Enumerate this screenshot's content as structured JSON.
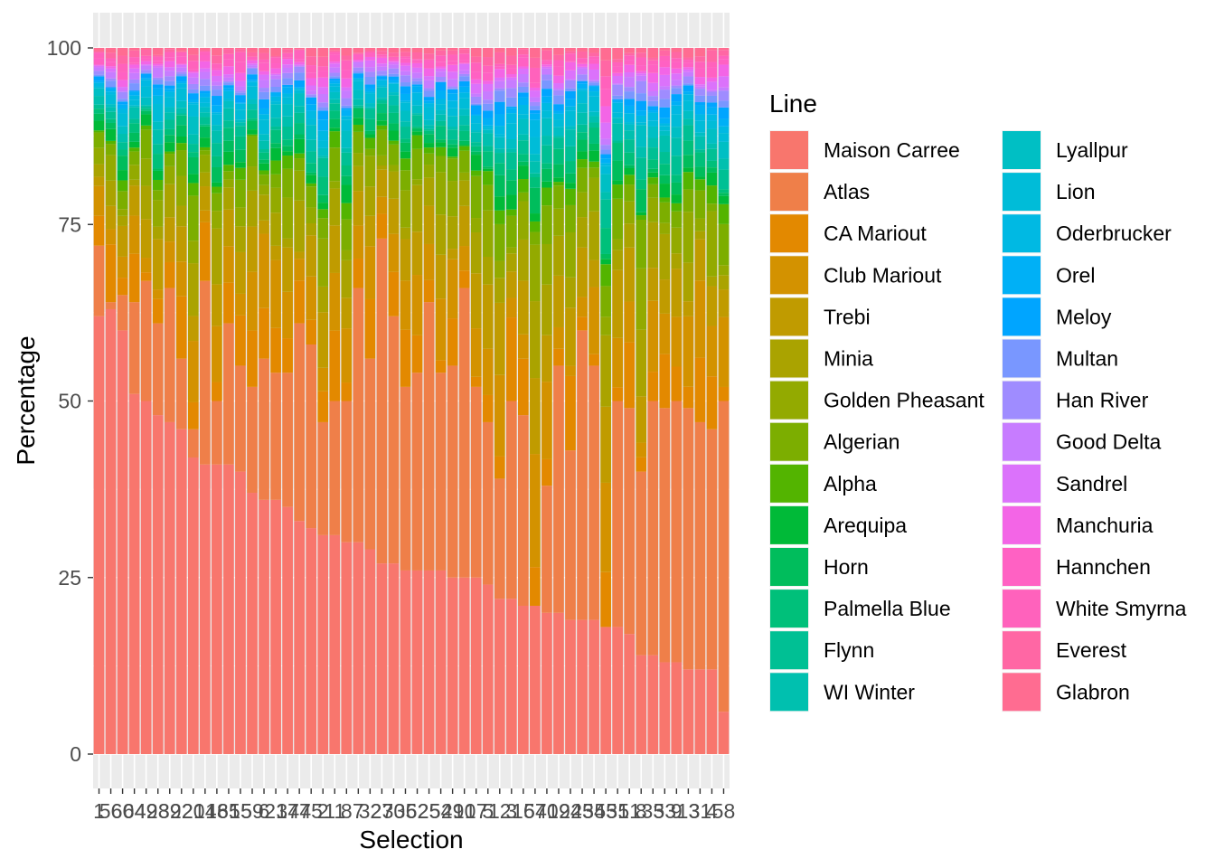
{
  "chart_data": {
    "type": "bar",
    "stacked": true,
    "xlabel": "Selection",
    "ylabel": "Percentage",
    "ylim": [
      0,
      100
    ],
    "yticks": [
      0,
      25,
      50,
      75,
      100
    ],
    "grid": true,
    "legend_title": "Line",
    "legend_position": "right",
    "categories": [
      "1",
      "56",
      "60",
      "64",
      "49",
      "28",
      "39",
      "22",
      "20",
      "14",
      "18",
      "65",
      "15",
      "59",
      "6",
      "21",
      "37",
      "47",
      "45",
      "2",
      "11",
      "8",
      "7",
      "32",
      "27",
      "30",
      "35",
      "62",
      "25",
      "54",
      "29",
      "10",
      "17",
      "5",
      "12",
      "3",
      "16",
      "57",
      "40",
      "19",
      "24",
      "25",
      "34",
      "55",
      "31",
      "51",
      "8",
      "33",
      "53",
      "9",
      "13",
      "31",
      "4",
      "58"
    ],
    "lines": [
      {
        "name": "Maison Carree",
        "color": "#F8766D"
      },
      {
        "name": "Atlas",
        "color": "#EF7F49"
      },
      {
        "name": "CA Mariout",
        "color": "#E38900"
      },
      {
        "name": "Club Mariout",
        "color": "#D39200"
      },
      {
        "name": "Trebi",
        "color": "#C09B00"
      },
      {
        "name": "Minia",
        "color": "#AAA300"
      },
      {
        "name": "Golden Pheasant",
        "color": "#93AA00"
      },
      {
        "name": "Algerian",
        "color": "#7CAE00"
      },
      {
        "name": "Alpha",
        "color": "#53B400"
      },
      {
        "name": "Arequipa",
        "color": "#00BA38"
      },
      {
        "name": "Horn",
        "color": "#00BD5C"
      },
      {
        "name": "Palmella Blue",
        "color": "#00C07A"
      },
      {
        "name": "Flynn",
        "color": "#00C094"
      },
      {
        "name": "WI Winter",
        "color": "#00C0AF"
      },
      {
        "name": "Lyallpur",
        "color": "#00BFC4"
      },
      {
        "name": "Lion",
        "color": "#00BCD8"
      },
      {
        "name": "Oderbrucker",
        "color": "#00B9E3"
      },
      {
        "name": "Orel",
        "color": "#00B0F6"
      },
      {
        "name": "Meloy",
        "color": "#00A5FF"
      },
      {
        "name": "Multan",
        "color": "#7997FF"
      },
      {
        "name": "Han River",
        "color": "#9F8CFF"
      },
      {
        "name": "Good Delta",
        "color": "#C77CFF"
      },
      {
        "name": "Sandrel",
        "color": "#DB72FB"
      },
      {
        "name": "Manchuria",
        "color": "#F365E6"
      },
      {
        "name": "Hannchen",
        "color": "#FF61C3"
      },
      {
        "name": "White Smyrna",
        "color": "#FF62BC"
      },
      {
        "name": "Everest",
        "color": "#FF67A4"
      },
      {
        "name": "Glabron",
        "color": "#FF6C91"
      }
    ],
    "series_note_values_percent_per_category": true,
    "series": [
      {
        "name": "Maison Carree",
        "values": [
          62,
          63,
          60,
          51,
          50,
          48,
          47,
          46,
          42,
          41,
          41,
          41,
          40,
          37,
          36,
          36,
          35,
          33,
          32,
          31,
          31,
          30,
          30,
          29,
          27,
          27,
          26,
          26,
          26,
          26,
          25,
          25,
          25,
          24,
          22,
          22,
          21,
          21,
          20,
          20,
          19,
          19,
          19,
          18,
          18,
          17,
          14,
          14,
          13,
          13,
          12,
          12,
          12,
          6
        ]
      },
      {
        "name": "Atlas",
        "values": [
          10,
          1,
          5,
          13,
          17,
          13,
          19,
          10,
          4,
          26,
          9,
          20,
          15,
          15,
          20,
          18,
          19,
          28,
          26,
          16,
          19,
          20,
          36,
          27,
          46,
          35,
          26,
          28,
          38,
          28,
          30,
          41,
          27,
          23,
          17,
          28,
          27,
          0,
          18,
          35,
          24,
          41,
          36,
          0,
          32,
          32,
          26,
          36,
          36,
          37,
          37,
          35,
          34,
          44
        ]
      }
    ]
  },
  "legend": {
    "title": "Line",
    "items": [
      "Maison Carree",
      "Atlas",
      "CA Mariout",
      "Club Mariout",
      "Trebi",
      "Minia",
      "Golden Pheasant",
      "Algerian",
      "Alpha",
      "Arequipa",
      "Horn",
      "Palmella Blue",
      "Flynn",
      "WI Winter",
      "Lyallpur",
      "Lion",
      "Oderbrucker",
      "Orel",
      "Meloy",
      "Multan",
      "Han River",
      "Good Delta",
      "Sandrel",
      "Manchuria",
      "Hannchen",
      "White Smyrna",
      "Everest",
      "Glabron"
    ]
  }
}
